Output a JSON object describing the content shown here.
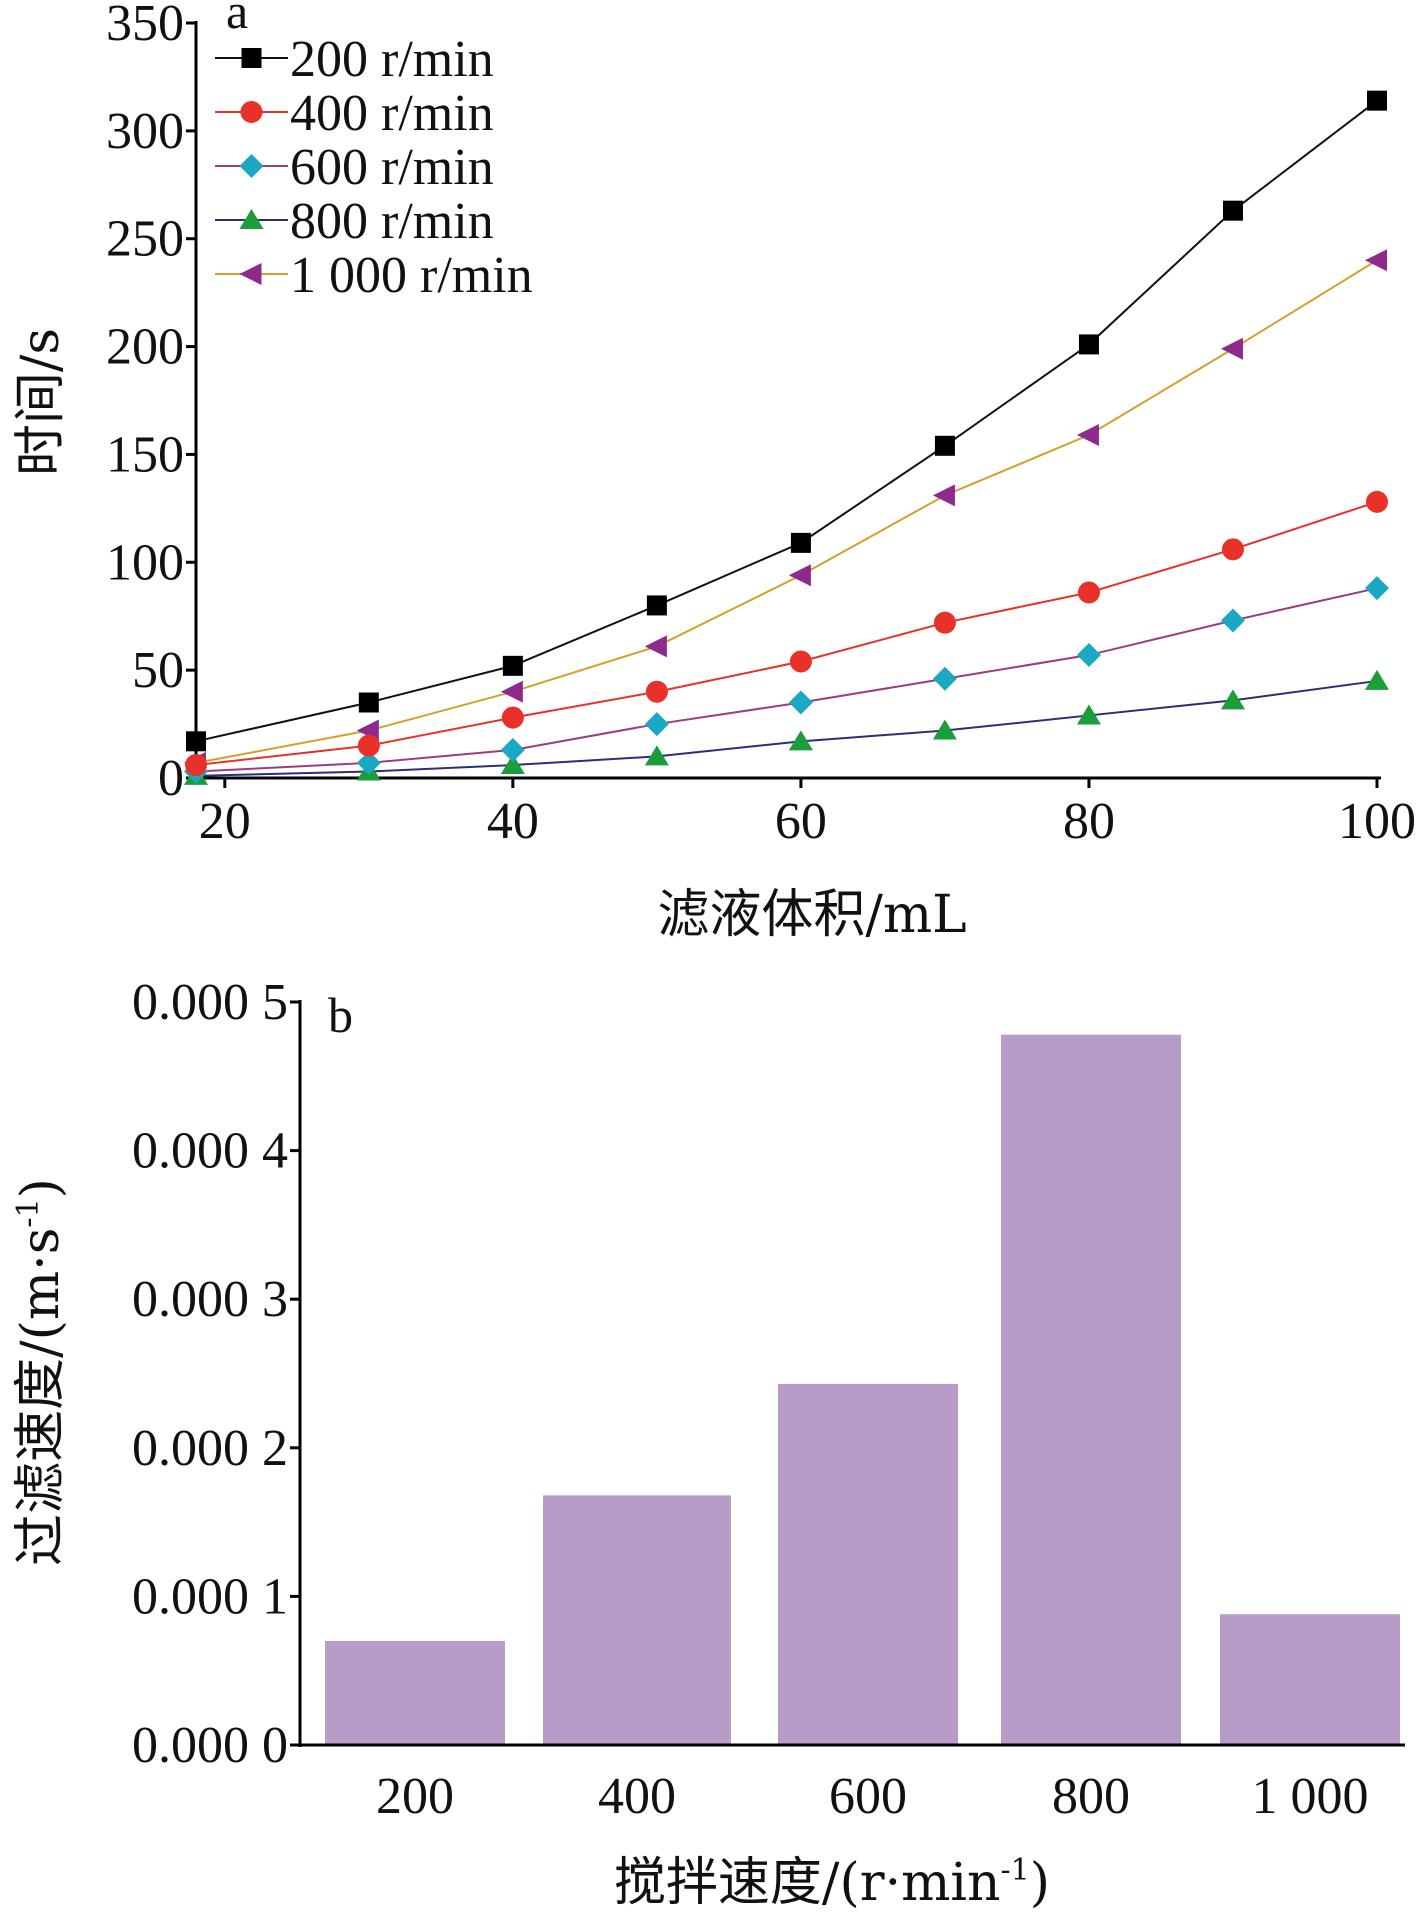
{
  "chart_data": [
    {
      "type": "line",
      "panel_label": "a",
      "xlabel": "滤液体积/mL",
      "ylabel": "时间/s",
      "xlim": [
        18,
        100
      ],
      "ylim": [
        0,
        350
      ],
      "xticks": [
        20,
        40,
        60,
        80,
        100
      ],
      "yticks": [
        0,
        50,
        100,
        150,
        200,
        250,
        300,
        350
      ],
      "x": [
        18,
        30,
        40,
        50,
        60,
        70,
        80,
        90,
        100
      ],
      "legend_position": "top-left",
      "grid": false,
      "series": [
        {
          "name": "200 r/min",
          "color": "#111111",
          "marker": "square",
          "marker_color": "#000000",
          "values": [
            17,
            35,
            52,
            80,
            109,
            154,
            201,
            263,
            314
          ]
        },
        {
          "name": "400 r/min",
          "color": "#e8312a",
          "marker": "circle",
          "marker_color": "#e8312a",
          "values": [
            6,
            15,
            28,
            40,
            54,
            72,
            86,
            106,
            128
          ]
        },
        {
          "name": "600 r/min",
          "color": "#9c3d7c",
          "marker": "diamond",
          "marker_color": "#1aa8c4",
          "values": [
            3,
            7,
            13,
            25,
            35,
            46,
            57,
            73,
            88
          ]
        },
        {
          "name": "800 r/min",
          "color": "#2a2f7a",
          "marker": "triangle-up",
          "marker_color": "#1b9e3a",
          "values": [
            1,
            3,
            6,
            10,
            17,
            22,
            29,
            36,
            45
          ]
        },
        {
          "name": "1 000 r/min",
          "color": "#d4a02a",
          "marker": "triangle-left",
          "marker_color": "#8e2a8c",
          "values": [
            7,
            22,
            40,
            61,
            94,
            131,
            159,
            199,
            240
          ]
        }
      ]
    },
    {
      "type": "bar",
      "panel_label": "b",
      "xlabel": "搅拌速度/(r·min",
      "xlabel_sup": "-1",
      "xlabel_tail": ")",
      "ylabel": "过滤速度/(m·s",
      "ylabel_sup": "-1",
      "ylabel_tail": ")",
      "categories": [
        "200",
        "400",
        "600",
        "800",
        "1 000"
      ],
      "values": [
        7e-05,
        0.000168,
        0.000243,
        0.000478,
        8.8e-05
      ],
      "ylim": [
        0,
        0.0005
      ],
      "yticks": [
        0,
        0.0001,
        0.0002,
        0.0003,
        0.0004,
        0.0005
      ],
      "ytick_labels": [
        "0.000 0",
        "0.000 1",
        "0.000 2",
        "0.000 3",
        "0.000 4",
        "0.000 5"
      ],
      "bar_color": "#b79cc7",
      "grid": false
    }
  ]
}
